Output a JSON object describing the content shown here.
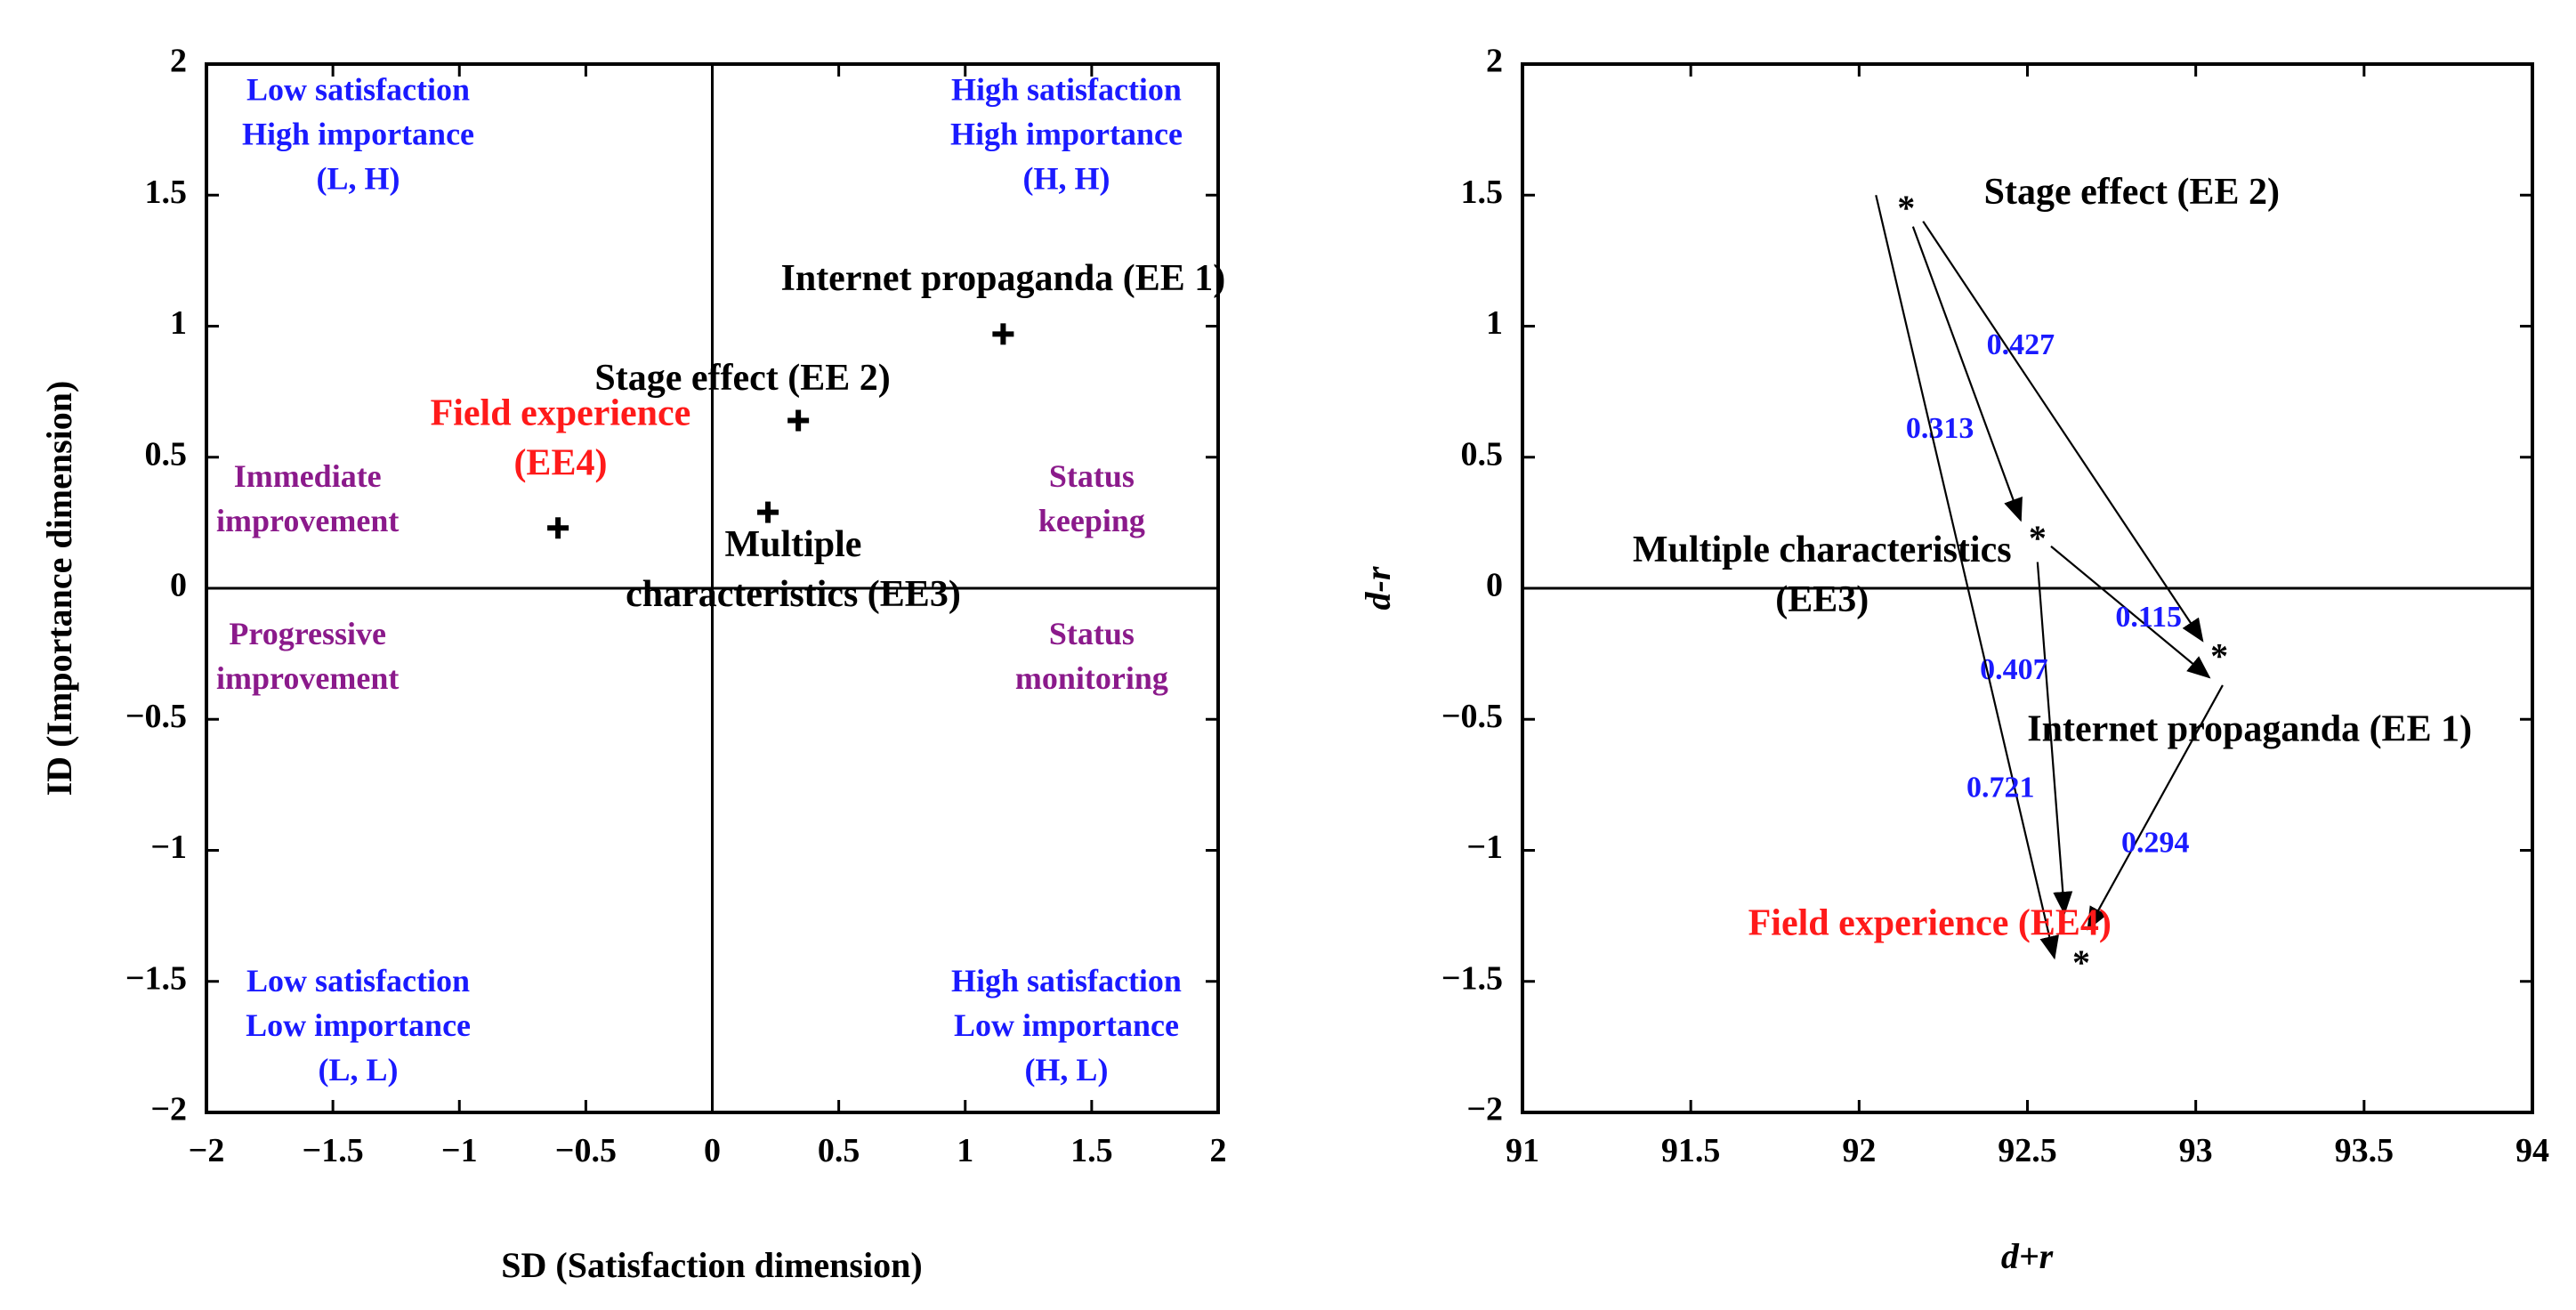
{
  "colors": {
    "axis": "#000000",
    "quadrant_label": "#1a1aff",
    "action_label": "#8b1a8b",
    "highlight": "#ff1a1a",
    "weight": "#1a1aff"
  },
  "chart_data": [
    {
      "type": "scatter",
      "title": "",
      "xlabel": "SD (Satisfaction dimension)",
      "ylabel": "ID (Importance dimension)",
      "xlim": [
        -2,
        2
      ],
      "ylim": [
        -2,
        2
      ],
      "xticks": [
        -2,
        -1.5,
        -1,
        -0.5,
        0,
        0.5,
        1,
        1.5,
        2
      ],
      "yticks": [
        -2,
        -1.5,
        -1,
        -0.5,
        0,
        0.5,
        1,
        1.5,
        2
      ],
      "xtick_labels": [
        "−2",
        "−1.5",
        "−1",
        "−0.5",
        "0",
        "0.5",
        "1",
        "1.5",
        "2"
      ],
      "ytick_labels": [
        "−2",
        "−1.5",
        "−1",
        "−0.5",
        "0",
        "0.5",
        "1",
        "1.5",
        "2"
      ],
      "points": [
        {
          "name": "Internet propaganda (EE 1)",
          "x": 1.15,
          "y": 0.97,
          "label_lines": [
            "Internet propaganda (EE 1)"
          ],
          "label_at": [
            1.15,
            1.17
          ],
          "highlight": false
        },
        {
          "name": "Stage effect (EE 2)",
          "x": 0.34,
          "y": 0.64,
          "label_lines": [
            "Stage effect (EE 2)"
          ],
          "label_at": [
            0.12,
            0.79
          ],
          "highlight": false
        },
        {
          "name": "Multiple characteristics (EE3)",
          "x": 0.22,
          "y": 0.29,
          "label_lines": [
            "Multiple",
            "characteristics (EE3)"
          ],
          "label_at": [
            0.32,
            0.06
          ],
          "highlight": false
        },
        {
          "name": "Field experience (EE4)",
          "x": -0.61,
          "y": 0.23,
          "label_lines": [
            "Field experience",
            "(EE4)"
          ],
          "label_at": [
            -0.6,
            0.56
          ],
          "highlight": true
        }
      ],
      "quadrant_labels": [
        {
          "lines": [
            "Low satisfaction",
            "High importance",
            "(L, H)"
          ],
          "at": [
            -1.4,
            1.72
          ],
          "kind": "quadrant"
        },
        {
          "lines": [
            "High satisfaction",
            "High importance",
            "(H, H)"
          ],
          "at": [
            1.4,
            1.72
          ],
          "kind": "quadrant"
        },
        {
          "lines": [
            "Low satisfaction",
            "Low importance",
            "(L, L)"
          ],
          "at": [
            -1.4,
            -1.68
          ],
          "kind": "quadrant"
        },
        {
          "lines": [
            "High satisfaction",
            "Low importance",
            "(H, L)"
          ],
          "at": [
            1.4,
            -1.68
          ],
          "kind": "quadrant"
        },
        {
          "lines": [
            "Immediate",
            "improvement"
          ],
          "at": [
            -1.6,
            0.33
          ],
          "kind": "action"
        },
        {
          "lines": [
            "Status",
            "keeping"
          ],
          "at": [
            1.5,
            0.33
          ],
          "kind": "action"
        },
        {
          "lines": [
            "Progressive",
            "improvement"
          ],
          "at": [
            -1.6,
            -0.27
          ],
          "kind": "action"
        },
        {
          "lines": [
            "Status",
            "monitoring"
          ],
          "at": [
            1.5,
            -0.27
          ],
          "kind": "action"
        }
      ]
    },
    {
      "type": "scatter",
      "title": "",
      "xlabel": "d+r",
      "ylabel": "d-r",
      "xlim": [
        91,
        94
      ],
      "ylim": [
        -2,
        2
      ],
      "xticks": [
        91,
        91.5,
        92,
        92.5,
        93,
        93.5,
        94
      ],
      "yticks": [
        -2,
        -1.5,
        -1,
        -0.5,
        0,
        0.5,
        1,
        1.5,
        2
      ],
      "xtick_labels": [
        "91",
        "91.5",
        "92",
        "92.5",
        "93",
        "93.5",
        "94"
      ],
      "ytick_labels": [
        "−2",
        "−1.5",
        "−1",
        "−0.5",
        "0",
        "0.5",
        "1",
        "1.5",
        "2"
      ],
      "points": [
        {
          "name": "Stage effect (EE 2)",
          "x": 92.14,
          "y": 1.46,
          "label_lines": [
            "Stage effect (EE 2)"
          ],
          "label_at": [
            92.81,
            1.5
          ],
          "highlight": false
        },
        {
          "name": "Multiple characteristics (EE3)",
          "x": 92.53,
          "y": 0.2,
          "label_lines": [
            "Multiple characteristics",
            "(EE3)"
          ],
          "label_at": [
            91.89,
            0.04
          ],
          "highlight": false
        },
        {
          "name": "Internet propaganda (EE 1)",
          "x": 93.07,
          "y": -0.25,
          "label_lines": [
            "Internet propaganda (EE 1)"
          ],
          "label_at": [
            93.16,
            -0.55
          ],
          "highlight": false
        },
        {
          "name": "Field experience (EE4)",
          "x": 92.66,
          "y": -1.42,
          "label_lines": [
            "Field experience (EE4)"
          ],
          "label_at": [
            92.21,
            -1.29
          ],
          "highlight": true
        }
      ],
      "influence_arrows": [
        {
          "from": "Stage effect (EE 2)",
          "to": "Internet propaganda (EE 1)",
          "weight": "0.427",
          "x1": 92.19,
          "y1": 1.4,
          "x2": 93.02,
          "y2": -0.2,
          "label_at": [
            92.48,
            0.92
          ]
        },
        {
          "from": "Stage effect (EE 2)",
          "to": "Multiple characteristics (EE3)",
          "weight": "0.313",
          "x1": 92.16,
          "y1": 1.38,
          "x2": 92.48,
          "y2": 0.26,
          "label_at": [
            92.24,
            0.6
          ]
        },
        {
          "from": "Multiple characteristics (EE3)",
          "to": "Internet propaganda (EE 1)",
          "weight": "0.115",
          "x1": 92.57,
          "y1": 0.16,
          "x2": 93.04,
          "y2": -0.34,
          "label_at": [
            92.86,
            -0.12
          ]
        },
        {
          "from": "Multiple characteristics (EE3)",
          "to": "Field experience (EE4)",
          "weight": "0.407",
          "x1": 92.53,
          "y1": 0.1,
          "x2": 92.61,
          "y2": -1.24,
          "label_at": [
            92.46,
            -0.32
          ]
        },
        {
          "from": "Stage effect (EE 2)",
          "to": "Field experience (EE4)",
          "weight": "0.721",
          "x1": 92.05,
          "y1": 1.5,
          "x2": 92.58,
          "y2": -1.41,
          "label_at": [
            92.42,
            -0.77
          ]
        },
        {
          "from": "Internet propaganda (EE 1)",
          "to": "Field experience (EE4)",
          "weight": "0.294",
          "x1": 93.08,
          "y1": -0.37,
          "x2": 92.68,
          "y2": -1.3,
          "label_at": [
            92.88,
            -0.98
          ]
        }
      ]
    }
  ]
}
